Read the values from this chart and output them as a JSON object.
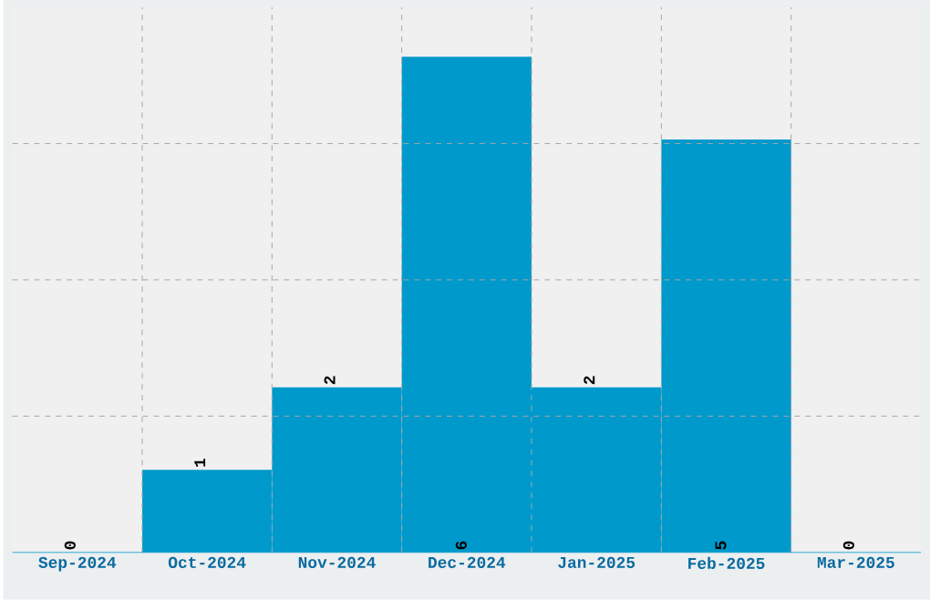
{
  "chart_data": {
    "type": "bar",
    "categories": [
      "Sep-2024",
      "Oct-2024",
      "Nov-2024",
      "Dec-2024",
      "Jan-2025",
      "Feb-2025",
      "Mar-2025"
    ],
    "values": [
      0,
      1,
      2,
      6,
      2,
      5,
      0
    ],
    "color": "#0099cc",
    "ylim": [
      0,
      6.6
    ],
    "tick_labels": "x",
    "grid": true,
    "data_labels": true
  }
}
